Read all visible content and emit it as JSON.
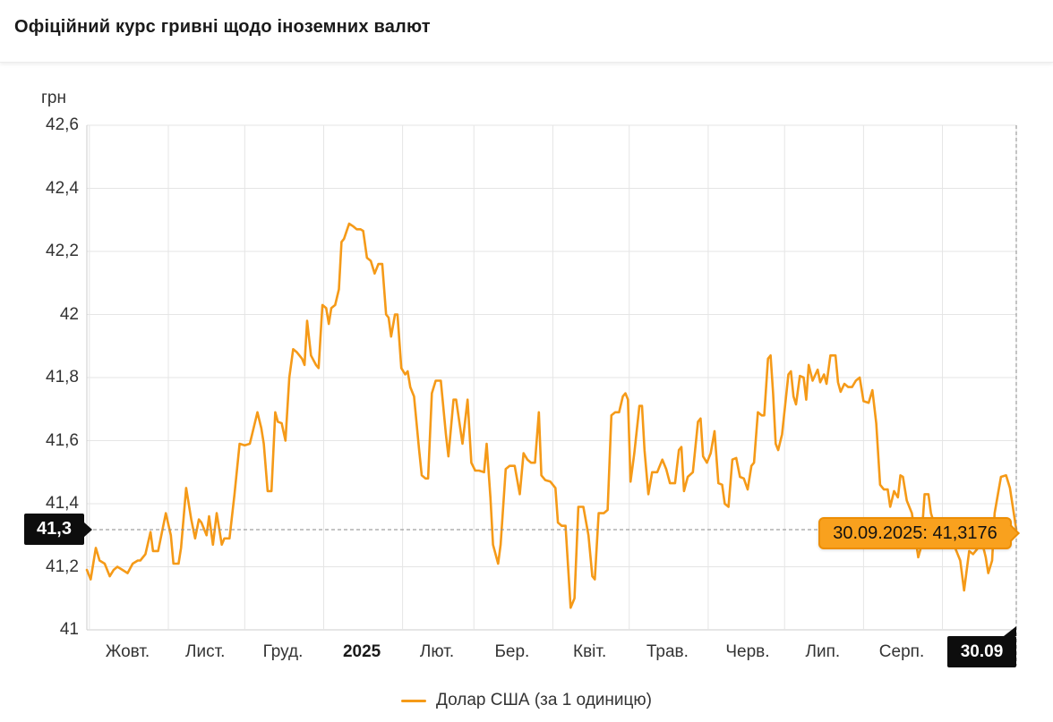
{
  "header": {
    "title": "Офіційний курс гривні щодо іноземних валют"
  },
  "chart": {
    "unit_label": "грн",
    "y_axis": {
      "ticks": [
        {
          "label": "42,6",
          "value": 42.6
        },
        {
          "label": "42,4",
          "value": 42.4
        },
        {
          "label": "42,2",
          "value": 42.2
        },
        {
          "label": "42",
          "value": 42.0
        },
        {
          "label": "41,8",
          "value": 41.8
        },
        {
          "label": "41,6",
          "value": 41.6
        },
        {
          "label": "41,4",
          "value": 41.4
        },
        {
          "label": "41,2",
          "value": 41.2
        },
        {
          "label": "41",
          "value": 41.0
        }
      ]
    },
    "x_axis": {
      "labels": [
        {
          "label": "Жовт.",
          "day": 16,
          "bold": false
        },
        {
          "label": "Лист.",
          "day": 46.5,
          "bold": false
        },
        {
          "label": "Груд.",
          "day": 77,
          "bold": false
        },
        {
          "label": "2025",
          "day": 108,
          "bold": true
        },
        {
          "label": "Лют.",
          "day": 137.5,
          "bold": false
        },
        {
          "label": "Бер.",
          "day": 167,
          "bold": false
        },
        {
          "label": "Квіт.",
          "day": 197.5,
          "bold": false
        },
        {
          "label": "Трав.",
          "day": 228,
          "bold": false
        },
        {
          "label": "Черв.",
          "day": 259.5,
          "bold": false
        },
        {
          "label": "Лип.",
          "day": 289,
          "bold": false
        },
        {
          "label": "Серп.",
          "day": 320,
          "bold": false
        }
      ]
    },
    "value_badge": "41,3",
    "date_badge": "30.09",
    "tooltip_label": "30.09.2025: 41,3176",
    "legend_label": "Долар США (за 1 одиницю)",
    "colors": {
      "line": "#F59A18",
      "tooltip_bg": "#F9A11E",
      "tooltip_border": "#ED8E04",
      "badge_bg": "#0D0D0D",
      "grid": "#e5e5e5",
      "axis": "#cccccc",
      "crosshair": "#8a8a8a"
    }
  },
  "chart_data": {
    "type": "line",
    "title": "Офіційний курс гривні щодо іноземних валют",
    "ylabel": "грн",
    "x_start": "30.09.2024",
    "x_end": "30.09.2025",
    "ylim": [
      41,
      42.6
    ],
    "y_tick_values": [
      42.6,
      42.4,
      42.2,
      42.0,
      41.8,
      41.6,
      41.4,
      41.2,
      41.0
    ],
    "month_start_days": [
      1,
      32,
      62,
      93,
      124,
      152,
      183,
      213,
      244,
      274,
      305,
      336
    ],
    "total_days": 365,
    "grid": true,
    "legend_position": "bottom",
    "highlight": {
      "date": "30.09.2025",
      "value": 41.3176,
      "label": "30.09.2025: 41,3176"
    },
    "series": [
      {
        "name": "Долар США (за 1 одиницю)",
        "points": [
          [
            0,
            41.19
          ],
          [
            1.5,
            41.16
          ],
          [
            3.5,
            41.26
          ],
          [
            5,
            41.22
          ],
          [
            7,
            41.21
          ],
          [
            9,
            41.17
          ],
          [
            10.5,
            41.19
          ],
          [
            12,
            41.2
          ],
          [
            14,
            41.19
          ],
          [
            16,
            41.18
          ],
          [
            18,
            41.21
          ],
          [
            20,
            41.22
          ],
          [
            21,
            41.22
          ],
          [
            23,
            41.24
          ],
          [
            25,
            41.31
          ],
          [
            26,
            41.25
          ],
          [
            28,
            41.25
          ],
          [
            31,
            41.37
          ],
          [
            33,
            41.3
          ],
          [
            34,
            41.21
          ],
          [
            36,
            41.21
          ],
          [
            37,
            41.26
          ],
          [
            39,
            41.45
          ],
          [
            41,
            41.35
          ],
          [
            42.5,
            41.29
          ],
          [
            44,
            41.35
          ],
          [
            45,
            41.34
          ],
          [
            47,
            41.3
          ],
          [
            48,
            41.36
          ],
          [
            49.5,
            41.27
          ],
          [
            51,
            41.37
          ],
          [
            53,
            41.27
          ],
          [
            54,
            41.29
          ],
          [
            56,
            41.29
          ],
          [
            58,
            41.43
          ],
          [
            60,
            41.59
          ],
          [
            62,
            41.585
          ],
          [
            64,
            41.59
          ],
          [
            67,
            41.69
          ],
          [
            68.5,
            41.64
          ],
          [
            69.5,
            41.59
          ],
          [
            71,
            41.44
          ],
          [
            72.5,
            41.44
          ],
          [
            74,
            41.69
          ],
          [
            75,
            41.66
          ],
          [
            76.5,
            41.655
          ],
          [
            78,
            41.6
          ],
          [
            79.5,
            41.8
          ],
          [
            81,
            41.89
          ],
          [
            82.5,
            41.88
          ],
          [
            84.5,
            41.86
          ],
          [
            85.5,
            41.84
          ],
          [
            86.5,
            41.98
          ],
          [
            88,
            41.87
          ],
          [
            90,
            41.84
          ],
          [
            91,
            41.83
          ],
          [
            92.5,
            42.03
          ],
          [
            94,
            42.02
          ],
          [
            95,
            41.97
          ],
          [
            96,
            42.02
          ],
          [
            97.5,
            42.03
          ],
          [
            99,
            42.08
          ],
          [
            100,
            42.23
          ],
          [
            101,
            42.24
          ],
          [
            103,
            42.288
          ],
          [
            104.5,
            42.28
          ],
          [
            106,
            42.27
          ],
          [
            107.5,
            42.27
          ],
          [
            108.5,
            42.265
          ],
          [
            110,
            42.18
          ],
          [
            111.5,
            42.17
          ],
          [
            113,
            42.13
          ],
          [
            114.5,
            42.16
          ],
          [
            116,
            42.16
          ],
          [
            117.5,
            42.0
          ],
          [
            118.5,
            41.99
          ],
          [
            119.5,
            41.93
          ],
          [
            121,
            42.0
          ],
          [
            122,
            42.0
          ],
          [
            123.5,
            41.83
          ],
          [
            125,
            41.81
          ],
          [
            126,
            41.82
          ],
          [
            127,
            41.77
          ],
          [
            128.5,
            41.74
          ],
          [
            130.5,
            41.57
          ],
          [
            131.5,
            41.49
          ],
          [
            133,
            41.48
          ],
          [
            134,
            41.48
          ],
          [
            135.5,
            41.75
          ],
          [
            137,
            41.79
          ],
          [
            139,
            41.79
          ],
          [
            141,
            41.62
          ],
          [
            142,
            41.55
          ],
          [
            144,
            41.73
          ],
          [
            145,
            41.73
          ],
          [
            147.5,
            41.59
          ],
          [
            149.5,
            41.73
          ],
          [
            151,
            41.53
          ],
          [
            152.5,
            41.505
          ],
          [
            154,
            41.505
          ],
          [
            156,
            41.5
          ],
          [
            157,
            41.59
          ],
          [
            158.5,
            41.42
          ],
          [
            159.5,
            41.27
          ],
          [
            161.5,
            41.21
          ],
          [
            162.5,
            41.27
          ],
          [
            164.5,
            41.51
          ],
          [
            166,
            41.52
          ],
          [
            168,
            41.52
          ],
          [
            170,
            41.43
          ],
          [
            171.5,
            41.56
          ],
          [
            173,
            41.54
          ],
          [
            174.5,
            41.53
          ],
          [
            176,
            41.53
          ],
          [
            177.5,
            41.69
          ],
          [
            178.5,
            41.49
          ],
          [
            180,
            41.475
          ],
          [
            182,
            41.47
          ],
          [
            184,
            41.45
          ],
          [
            185,
            41.34
          ],
          [
            186.5,
            41.33
          ],
          [
            188,
            41.33
          ],
          [
            190,
            41.07
          ],
          [
            191.5,
            41.1
          ],
          [
            193,
            41.39
          ],
          [
            195,
            41.39
          ],
          [
            197,
            41.3
          ],
          [
            198.5,
            41.17
          ],
          [
            199.5,
            41.16
          ],
          [
            201,
            41.37
          ],
          [
            203,
            41.37
          ],
          [
            204.5,
            41.38
          ],
          [
            206,
            41.68
          ],
          [
            207.5,
            41.69
          ],
          [
            209,
            41.69
          ],
          [
            210.5,
            41.74
          ],
          [
            211.5,
            41.75
          ],
          [
            212.5,
            41.73
          ],
          [
            213.5,
            41.47
          ],
          [
            215,
            41.56
          ],
          [
            217,
            41.71
          ],
          [
            218,
            41.71
          ],
          [
            219,
            41.57
          ],
          [
            220.5,
            41.43
          ],
          [
            222,
            41.5
          ],
          [
            224,
            41.5
          ],
          [
            226,
            41.54
          ],
          [
            227.5,
            41.51
          ],
          [
            229,
            41.465
          ],
          [
            231,
            41.465
          ],
          [
            232.5,
            41.57
          ],
          [
            233.5,
            41.58
          ],
          [
            234.5,
            41.44
          ],
          [
            236,
            41.485
          ],
          [
            238,
            41.5
          ],
          [
            240,
            41.66
          ],
          [
            241,
            41.67
          ],
          [
            242,
            41.55
          ],
          [
            243.5,
            41.53
          ],
          [
            245,
            41.56
          ],
          [
            246.5,
            41.63
          ],
          [
            248,
            41.465
          ],
          [
            249.5,
            41.46
          ],
          [
            250.5,
            41.4
          ],
          [
            252,
            41.39
          ],
          [
            253.5,
            41.54
          ],
          [
            255,
            41.545
          ],
          [
            256.5,
            41.485
          ],
          [
            258,
            41.48
          ],
          [
            259.5,
            41.445
          ],
          [
            261,
            41.52
          ],
          [
            262,
            41.53
          ],
          [
            263.5,
            41.69
          ],
          [
            265,
            41.68
          ],
          [
            266,
            41.68
          ],
          [
            267.5,
            41.86
          ],
          [
            268.5,
            41.87
          ],
          [
            269.5,
            41.75
          ],
          [
            270.5,
            41.59
          ],
          [
            271.5,
            41.57
          ],
          [
            273,
            41.62
          ],
          [
            275.5,
            41.81
          ],
          [
            276.5,
            41.82
          ],
          [
            277.5,
            41.74
          ],
          [
            278.5,
            41.715
          ],
          [
            280,
            41.805
          ],
          [
            281.5,
            41.8
          ],
          [
            282.5,
            41.73
          ],
          [
            283.5,
            41.84
          ],
          [
            285,
            41.79
          ],
          [
            287,
            41.825
          ],
          [
            288,
            41.785
          ],
          [
            289.5,
            41.81
          ],
          [
            290.5,
            41.78
          ],
          [
            292,
            41.87
          ],
          [
            294,
            41.87
          ],
          [
            295,
            41.785
          ],
          [
            296,
            41.755
          ],
          [
            297.5,
            41.78
          ],
          [
            299,
            41.77
          ],
          [
            300.5,
            41.77
          ],
          [
            302,
            41.79
          ],
          [
            303.5,
            41.8
          ],
          [
            305,
            41.725
          ],
          [
            307,
            41.72
          ],
          [
            308.5,
            41.76
          ],
          [
            310,
            41.655
          ],
          [
            311.5,
            41.46
          ],
          [
            313,
            41.445
          ],
          [
            314.5,
            41.445
          ],
          [
            315.5,
            41.39
          ],
          [
            317,
            41.44
          ],
          [
            318.5,
            41.42
          ],
          [
            319.5,
            41.49
          ],
          [
            320.5,
            41.485
          ],
          [
            322,
            41.41
          ],
          [
            324,
            41.37
          ],
          [
            326.5,
            41.23
          ],
          [
            327.5,
            41.26
          ],
          [
            329,
            41.43
          ],
          [
            330.5,
            41.43
          ],
          [
            331.5,
            41.37
          ],
          [
            333,
            41.33
          ],
          [
            335,
            41.31
          ],
          [
            337,
            41.3
          ],
          [
            339,
            41.28
          ],
          [
            341,
            41.26
          ],
          [
            343,
            41.22
          ],
          [
            344.5,
            41.125
          ],
          [
            346.5,
            41.25
          ],
          [
            348,
            41.24
          ],
          [
            350,
            41.26
          ],
          [
            351.5,
            41.28
          ],
          [
            353,
            41.23
          ],
          [
            354,
            41.18
          ],
          [
            355.5,
            41.22
          ],
          [
            356.5,
            41.37
          ],
          [
            358,
            41.44
          ],
          [
            359,
            41.485
          ],
          [
            361,
            41.49
          ],
          [
            362.5,
            41.45
          ],
          [
            364,
            41.37
          ],
          [
            365,
            41.3176
          ]
        ]
      }
    ]
  }
}
